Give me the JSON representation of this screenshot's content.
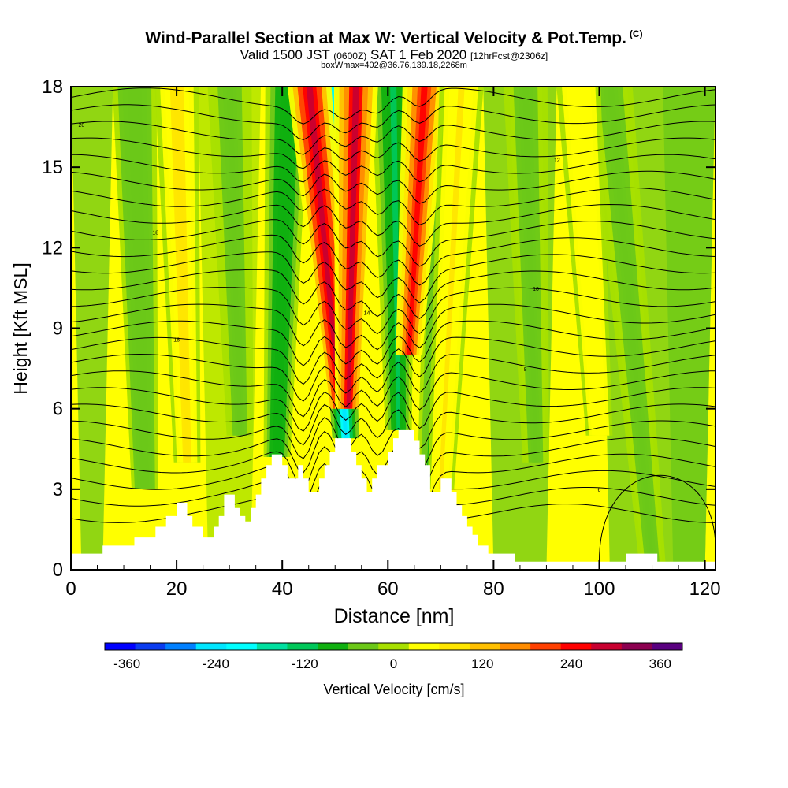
{
  "header": {
    "title": "Wind-Parallel Section at Max W: Vertical Velocity & Pot.Temp.",
    "copyright": "(C)",
    "valid_prefix": "Valid 1500 JST",
    "valid_utc": "(0600Z)",
    "valid_date": "SAT 1 Feb 2020",
    "forecast": "[12hrFcst@2306z]",
    "box_info": "boxWmax=402@36.76,139.18,2268m"
  },
  "chart_data": {
    "type": "heatmap",
    "xlabel": "Distance [nm]",
    "ylabel": "Height [Kft MSL]",
    "xlim": [
      0,
      122
    ],
    "ylim": [
      0,
      18
    ],
    "x_ticks": [
      0,
      20,
      40,
      60,
      80,
      100,
      120
    ],
    "y_ticks": [
      0,
      3,
      6,
      9,
      12,
      15,
      18
    ],
    "colorbar": {
      "label": "Vertical Velocity [cm/s]",
      "tick_labels": [
        -360,
        -240,
        -120,
        0,
        120,
        240,
        360
      ],
      "min": -390,
      "max": 390,
      "colors": [
        "#0000ff",
        "#0a3cf0",
        "#0080ff",
        "#00e6ff",
        "#00ffff",
        "#00e0a0",
        "#00c85a",
        "#10b010",
        "#6cc818",
        "#a8e000",
        "#ffff00",
        "#ffe600",
        "#ffc000",
        "#ff8c00",
        "#ff4000",
        "#ff0000",
        "#c80030",
        "#8c0050",
        "#5a0080"
      ]
    },
    "terrain_kft": [
      [
        0,
        0.6
      ],
      [
        6,
        0.6
      ],
      [
        6,
        0.9
      ],
      [
        12,
        0.9
      ],
      [
        12,
        1.2
      ],
      [
        16,
        1.2
      ],
      [
        16,
        1.6
      ],
      [
        18,
        1.6
      ],
      [
        18,
        2.0
      ],
      [
        20,
        2.0
      ],
      [
        20,
        2.5
      ],
      [
        22,
        2.5
      ],
      [
        22,
        2.0
      ],
      [
        23,
        2.0
      ],
      [
        23,
        1.6
      ],
      [
        25,
        1.6
      ],
      [
        25,
        1.2
      ],
      [
        27,
        1.2
      ],
      [
        27,
        1.6
      ],
      [
        28,
        1.6
      ],
      [
        28,
        2.0
      ],
      [
        29,
        2.0
      ],
      [
        29,
        2.8
      ],
      [
        31,
        2.8
      ],
      [
        31,
        2.3
      ],
      [
        32,
        2.3
      ],
      [
        32,
        2.0
      ],
      [
        33,
        2.0
      ],
      [
        33,
        1.8
      ],
      [
        34,
        1.8
      ],
      [
        34,
        2.3
      ],
      [
        35,
        2.3
      ],
      [
        35,
        2.8
      ],
      [
        36,
        2.8
      ],
      [
        36,
        3.4
      ],
      [
        37,
        3.4
      ],
      [
        37,
        3.9
      ],
      [
        38,
        3.9
      ],
      [
        38,
        4.3
      ],
      [
        40,
        4.3
      ],
      [
        40,
        3.9
      ],
      [
        41,
        3.9
      ],
      [
        41,
        3.4
      ],
      [
        43,
        3.4
      ],
      [
        43,
        3.9
      ],
      [
        44,
        3.9
      ],
      [
        44,
        3.4
      ],
      [
        45,
        3.4
      ],
      [
        45,
        2.9
      ],
      [
        47,
        2.9
      ],
      [
        47,
        3.4
      ],
      [
        48,
        3.4
      ],
      [
        48,
        3.9
      ],
      [
        49,
        3.9
      ],
      [
        49,
        4.4
      ],
      [
        50,
        4.4
      ],
      [
        50,
        4.9
      ],
      [
        53,
        4.9
      ],
      [
        53,
        4.4
      ],
      [
        54,
        4.4
      ],
      [
        54,
        3.9
      ],
      [
        55,
        3.9
      ],
      [
        55,
        3.4
      ],
      [
        56,
        3.4
      ],
      [
        56,
        2.9
      ],
      [
        57,
        2.9
      ],
      [
        57,
        3.4
      ],
      [
        58,
        3.4
      ],
      [
        58,
        3.9
      ],
      [
        60,
        3.9
      ],
      [
        60,
        4.4
      ],
      [
        61,
        4.4
      ],
      [
        61,
        4.9
      ],
      [
        62,
        4.9
      ],
      [
        62,
        5.2
      ],
      [
        65,
        5.2
      ],
      [
        65,
        4.8
      ],
      [
        66,
        4.8
      ],
      [
        66,
        4.3
      ],
      [
        67,
        4.3
      ],
      [
        67,
        3.9
      ],
      [
        68,
        3.9
      ],
      [
        68,
        2.9
      ],
      [
        70,
        2.9
      ],
      [
        70,
        3.4
      ],
      [
        72,
        3.4
      ],
      [
        72,
        2.9
      ],
      [
        73,
        2.9
      ],
      [
        73,
        2.4
      ],
      [
        74,
        2.4
      ],
      [
        74,
        2.0
      ],
      [
        75,
        2.0
      ],
      [
        75,
        1.6
      ],
      [
        76,
        1.6
      ],
      [
        76,
        1.3
      ],
      [
        77,
        1.3
      ],
      [
        77,
        0.9
      ],
      [
        79,
        0.9
      ],
      [
        79,
        0.6
      ],
      [
        84,
        0.6
      ],
      [
        84,
        0.3
      ],
      [
        105,
        0.3
      ],
      [
        105,
        0.6
      ],
      [
        111,
        0.6
      ],
      [
        111,
        0.3
      ],
      [
        122,
        0.3
      ]
    ],
    "updraft_bands": [
      {
        "x_top": 45,
        "x_bottom": 51,
        "bottom_kft": 6,
        "value": 300
      },
      {
        "x_top": 54,
        "x_bottom": 52.5,
        "bottom_kft": 6,
        "value": 280
      },
      {
        "x_top": 67,
        "x_bottom": 64,
        "bottom_kft": 8,
        "value": 260
      },
      {
        "x_top": 20,
        "x_bottom": 22,
        "bottom_kft": 4,
        "value": 80
      },
      {
        "x_top": 96,
        "x_bottom": 100,
        "bottom_kft": 5,
        "value": 60
      },
      {
        "x_top": 74,
        "x_bottom": 70,
        "bottom_kft": 3,
        "value": 70
      }
    ],
    "downdraft_bands": [
      {
        "x_top": 48.5,
        "x_bottom": 52,
        "bottom_kft": 4.9,
        "value": -230
      },
      {
        "x_top": 61,
        "x_bottom": 62,
        "bottom_kft": 5.2,
        "value": -110
      },
      {
        "x_top": 72,
        "x_bottom": 68,
        "bottom_kft": 3,
        "value": -90
      },
      {
        "x_top": 41,
        "x_bottom": 39,
        "bottom_kft": 4.2,
        "value": -100
      },
      {
        "x_top": 12,
        "x_bottom": 14,
        "bottom_kft": 3,
        "value": -60
      },
      {
        "x_top": 30,
        "x_bottom": 32,
        "bottom_kft": 5,
        "value": -50
      },
      {
        "x_top": 86,
        "x_bottom": 88,
        "bottom_kft": 4,
        "value": -45
      },
      {
        "x_top": 102,
        "x_bottom": 110,
        "bottom_kft": 0.3,
        "value": -40
      }
    ],
    "isentrope_labels": [
      "20",
      "18",
      "16",
      "14",
      "12",
      "10",
      "8",
      "6"
    ]
  }
}
